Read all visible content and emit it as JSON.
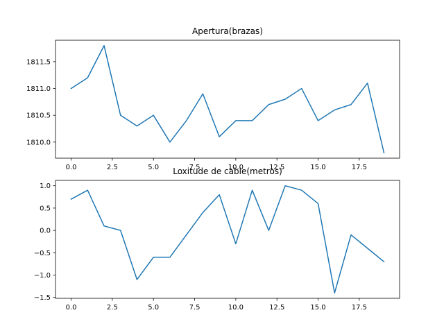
{
  "colors": {
    "series": "#1f77b4"
  },
  "chart_data": [
    {
      "type": "line",
      "title": "Apertura(brazas)",
      "x": [
        0,
        1,
        2,
        3,
        4,
        5,
        6,
        7,
        8,
        9,
        10,
        11,
        12,
        13,
        14,
        15,
        16,
        17,
        18,
        19
      ],
      "values": [
        1811.0,
        1811.2,
        1811.8,
        1810.5,
        1810.3,
        1810.5,
        1810.0,
        1810.4,
        1810.9,
        1810.1,
        1810.4,
        1810.4,
        1810.7,
        1810.8,
        1811.0,
        1810.4,
        1810.6,
        1810.7,
        1811.1,
        1809.8
      ],
      "xlim": [
        -0.95,
        19.95
      ],
      "ylim": [
        1809.7,
        1811.9
      ],
      "xticks": [
        0.0,
        2.5,
        5.0,
        7.5,
        10.0,
        12.5,
        15.0,
        17.5
      ],
      "xtick_labels": [
        "0.0",
        "2.5",
        "5.0",
        "7.5",
        "10.0",
        "12.5",
        "15.0",
        "17.5"
      ],
      "yticks": [
        1810.0,
        1810.5,
        1811.0,
        1811.5
      ],
      "ytick_labels": [
        "1810.0",
        "1810.5",
        "1811.0",
        "1811.5"
      ],
      "grid": false
    },
    {
      "type": "line",
      "title": "Loxitude de cable(metros)",
      "x": [
        0,
        1,
        2,
        3,
        4,
        5,
        6,
        7,
        8,
        9,
        10,
        11,
        12,
        13,
        14,
        15,
        16,
        17,
        18,
        19
      ],
      "values": [
        0.7,
        0.9,
        0.1,
        0.0,
        -1.1,
        -0.6,
        -0.6,
        -0.1,
        0.4,
        0.8,
        -0.3,
        0.9,
        0.0,
        1.0,
        0.9,
        0.6,
        -1.4,
        -0.1,
        -0.4,
        -0.7
      ],
      "xlim": [
        -0.95,
        19.95
      ],
      "ylim": [
        -1.52,
        1.12
      ],
      "xticks": [
        0.0,
        2.5,
        5.0,
        7.5,
        10.0,
        12.5,
        15.0,
        17.5
      ],
      "xtick_labels": [
        "0.0",
        "2.5",
        "5.0",
        "7.5",
        "10.0",
        "12.5",
        "15.0",
        "17.5"
      ],
      "yticks": [
        -1.5,
        -1.0,
        -0.5,
        0.0,
        0.5,
        1.0
      ],
      "ytick_labels": [
        "−1.5",
        "−1.0",
        "−0.5",
        "0.0",
        "0.5",
        "1.0"
      ],
      "grid": false
    }
  ]
}
